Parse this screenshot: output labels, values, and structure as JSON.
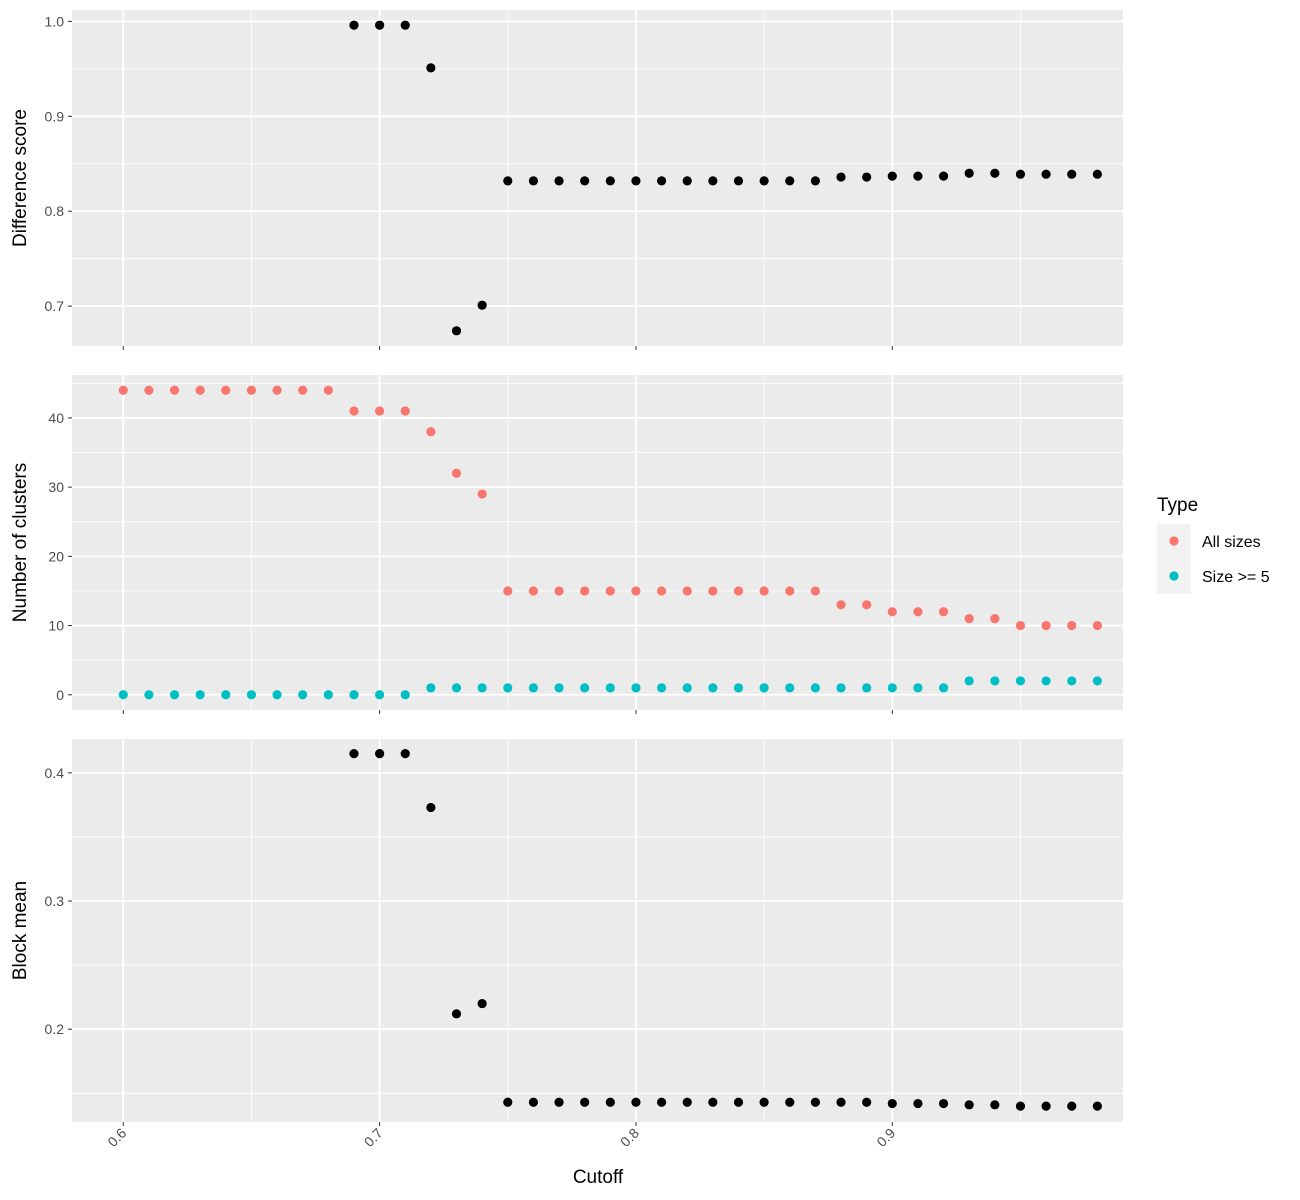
{
  "chart_data": {
    "type": "scatter",
    "xlabel": "Cutoff",
    "xlim": [
      0.58,
      0.99
    ],
    "x_ticks": [
      0.6,
      0.7,
      0.8,
      0.9
    ],
    "x_tick_labels": [
      "0.6",
      "0.7",
      "0.8",
      "0.9"
    ],
    "x": [
      0.6,
      0.61,
      0.62,
      0.63,
      0.64,
      0.65,
      0.66,
      0.67,
      0.68,
      0.69,
      0.7,
      0.71,
      0.72,
      0.73,
      0.74,
      0.75,
      0.76,
      0.77,
      0.78,
      0.79,
      0.8,
      0.81,
      0.82,
      0.83,
      0.84,
      0.85,
      0.86,
      0.87,
      0.88,
      0.89,
      0.9,
      0.91,
      0.92,
      0.93,
      0.94,
      0.95,
      0.96,
      0.97,
      0.98
    ],
    "grid": true,
    "legend_position": "right",
    "legend": {
      "title": "Type",
      "entries": [
        {
          "label": "All sizes",
          "color": "#F8766D"
        },
        {
          "label": "Size >= 5",
          "color": "#00BFC4"
        }
      ]
    },
    "panels": [
      {
        "ylabel": "Difference score",
        "ylim": [
          0.658,
          1.012
        ],
        "y_ticks": [
          0.7,
          0.8,
          0.9,
          1.0
        ],
        "y_tick_labels": [
          "0.7",
          "0.8",
          "0.9",
          "1.0"
        ],
        "series": [
          {
            "color": "#000000",
            "x": [
              0.69,
              0.7,
              0.71,
              0.72,
              0.73,
              0.74,
              0.75,
              0.76,
              0.77,
              0.78,
              0.79,
              0.8,
              0.81,
              0.82,
              0.83,
              0.84,
              0.85,
              0.86,
              0.87,
              0.88,
              0.89,
              0.9,
              0.91,
              0.92,
              0.93,
              0.94,
              0.95,
              0.96,
              0.97,
              0.98
            ],
            "values": [
              0.996,
              0.996,
              0.996,
              0.951,
              0.674,
              0.701,
              0.832,
              0.832,
              0.832,
              0.832,
              0.832,
              0.832,
              0.832,
              0.832,
              0.832,
              0.832,
              0.832,
              0.832,
              0.832,
              0.836,
              0.836,
              0.837,
              0.837,
              0.837,
              0.84,
              0.84,
              0.839,
              0.839,
              0.839,
              0.839
            ]
          }
        ]
      },
      {
        "ylabel": "Number of clusters",
        "ylim": [
          -2.2,
          46.2
        ],
        "y_ticks": [
          0,
          10,
          20,
          30,
          40
        ],
        "y_tick_labels": [
          "0",
          "10",
          "20",
          "30",
          "40"
        ],
        "series": [
          {
            "name": "All sizes",
            "color": "#F8766D",
            "x": [
              0.6,
              0.61,
              0.62,
              0.63,
              0.64,
              0.65,
              0.66,
              0.67,
              0.68,
              0.69,
              0.7,
              0.71,
              0.72,
              0.73,
              0.74,
              0.75,
              0.76,
              0.77,
              0.78,
              0.79,
              0.8,
              0.81,
              0.82,
              0.83,
              0.84,
              0.85,
              0.86,
              0.87,
              0.88,
              0.89,
              0.9,
              0.91,
              0.92,
              0.93,
              0.94,
              0.95,
              0.96,
              0.97,
              0.98
            ],
            "values": [
              44,
              44,
              44,
              44,
              44,
              44,
              44,
              44,
              44,
              41,
              41,
              41,
              38,
              32,
              29,
              15,
              15,
              15,
              15,
              15,
              15,
              15,
              15,
              15,
              15,
              15,
              15,
              15,
              13,
              13,
              12,
              12,
              12,
              11,
              11,
              10,
              10,
              10,
              10
            ]
          },
          {
            "name": "Size >= 5",
            "color": "#00BFC4",
            "x": [
              0.6,
              0.61,
              0.62,
              0.63,
              0.64,
              0.65,
              0.66,
              0.67,
              0.68,
              0.69,
              0.7,
              0.71,
              0.72,
              0.73,
              0.74,
              0.75,
              0.76,
              0.77,
              0.78,
              0.79,
              0.8,
              0.81,
              0.82,
              0.83,
              0.84,
              0.85,
              0.86,
              0.87,
              0.88,
              0.89,
              0.9,
              0.91,
              0.92,
              0.93,
              0.94,
              0.95,
              0.96,
              0.97,
              0.98
            ],
            "values": [
              0,
              0,
              0,
              0,
              0,
              0,
              0,
              0,
              0,
              0,
              0,
              0,
              1,
              1,
              1,
              1,
              1,
              1,
              1,
              1,
              1,
              1,
              1,
              1,
              1,
              1,
              1,
              1,
              1,
              1,
              1,
              1,
              1,
              2,
              2,
              2,
              2,
              2,
              2
            ]
          }
        ]
      },
      {
        "ylabel": "Block mean",
        "ylim": [
          0.1276,
          0.4264
        ],
        "y_ticks": [
          0.2,
          0.3,
          0.4
        ],
        "y_tick_labels": [
          "0.2",
          "0.3",
          "0.4"
        ],
        "series": [
          {
            "color": "#000000",
            "x": [
              0.69,
              0.7,
              0.71,
              0.72,
              0.73,
              0.74,
              0.75,
              0.76,
              0.77,
              0.78,
              0.79,
              0.8,
              0.81,
              0.82,
              0.83,
              0.84,
              0.85,
              0.86,
              0.87,
              0.88,
              0.89,
              0.9,
              0.91,
              0.92,
              0.93,
              0.94,
              0.95,
              0.96,
              0.97,
              0.98
            ],
            "values": [
              0.415,
              0.415,
              0.415,
              0.373,
              0.212,
              0.22,
              0.143,
              0.143,
              0.143,
              0.143,
              0.143,
              0.143,
              0.143,
              0.143,
              0.143,
              0.143,
              0.143,
              0.143,
              0.143,
              0.143,
              0.143,
              0.142,
              0.142,
              0.142,
              0.141,
              0.141,
              0.14,
              0.14,
              0.14,
              0.14
            ]
          }
        ]
      }
    ]
  }
}
